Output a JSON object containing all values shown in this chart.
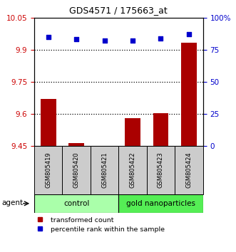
{
  "title": "GDS4571 / 175663_at",
  "categories": [
    "GSM805419",
    "GSM805420",
    "GSM805421",
    "GSM805422",
    "GSM805423",
    "GSM805424"
  ],
  "bar_values": [
    9.672,
    9.463,
    9.452,
    9.581,
    9.604,
    9.932
  ],
  "dot_values": [
    85,
    83,
    82,
    82,
    84,
    87
  ],
  "ylim_left": [
    9.45,
    10.05
  ],
  "ylim_right": [
    0,
    100
  ],
  "yticks_left": [
    9.45,
    9.6,
    9.75,
    9.9,
    10.05
  ],
  "yticks_right": [
    0,
    25,
    50,
    75,
    100
  ],
  "ytick_labels_left": [
    "9.45",
    "9.6",
    "9.75",
    "9.9",
    "10.05"
  ],
  "ytick_labels_right": [
    "0",
    "25",
    "50",
    "75",
    "100%"
  ],
  "hlines": [
    9.6,
    9.75,
    9.9
  ],
  "bar_color": "#aa0000",
  "dot_color": "#0000cc",
  "group1_label": "control",
  "group1_color": "#aaffaa",
  "group2_label": "gold nanoparticles",
  "group2_color": "#55ee55",
  "agent_label": "agent",
  "legend_bar_label": "transformed count",
  "legend_dot_label": "percentile rank within the sample",
  "tick_color_left": "#cc0000",
  "tick_color_right": "#0000cc",
  "bar_baseline": 9.45,
  "background_color": "#ffffff",
  "sample_box_color": "#cccccc",
  "sample_box_edge": "#000000"
}
